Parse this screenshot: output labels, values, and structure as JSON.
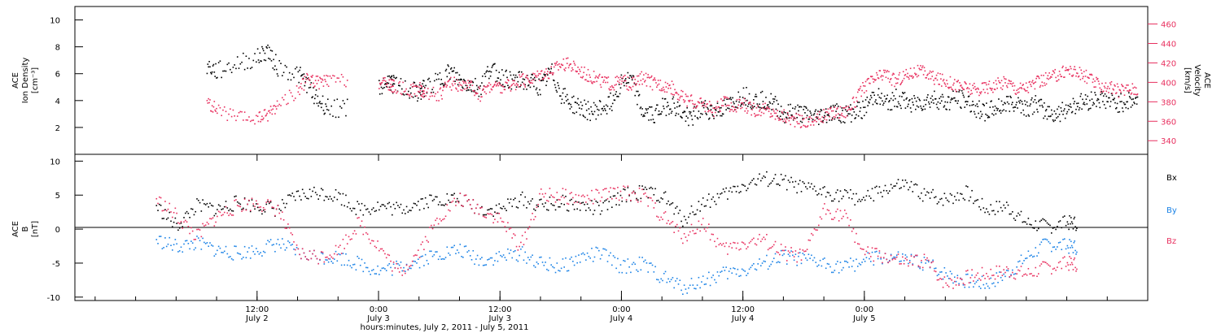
{
  "chart_data": [
    {
      "type": "scatter",
      "panel": "top",
      "ylabel_left": [
        "ACE",
        "Ion Density",
        "[cm⁻³]"
      ],
      "ylabel_right": [
        "ACE",
        "Velocity",
        "[km/s]"
      ],
      "left_axis": {
        "ylim": [
          0,
          11
        ],
        "ticks": [
          2,
          4,
          6,
          8,
          10
        ]
      },
      "right_axis": {
        "ylim": [
          326,
          478
        ],
        "ticks": [
          340,
          360,
          380,
          400,
          420,
          440,
          460
        ]
      },
      "series": [
        {
          "name": "density",
          "color": "#000000",
          "axis": "left",
          "x": [
            7,
            8,
            10,
            12,
            13,
            14,
            16,
            17,
            18,
            19,
            21,
            22,
            24,
            25,
            25.5,
            27,
            28,
            28.5,
            30,
            31,
            32,
            33,
            34,
            35,
            36,
            37,
            38,
            39,
            40,
            41,
            42,
            43,
            44,
            45,
            46,
            47,
            48,
            49,
            50,
            51,
            52,
            53,
            54,
            55,
            56,
            57,
            58,
            59,
            60,
            61,
            62,
            63,
            64,
            65,
            66,
            67,
            68,
            69,
            70,
            71,
            72,
            73,
            74,
            75,
            76,
            77,
            78,
            79,
            80,
            81,
            82,
            83,
            84,
            85,
            86,
            87,
            88,
            89,
            90,
            91,
            92,
            93,
            94,
            95,
            96,
            97,
            98
          ],
          "values": [
            6.6,
            6.2,
            6.8,
            7.2,
            7.8,
            6.5,
            6.0,
            5.2,
            4.0,
            3.5,
            null,
            null,
            5.0,
            5.5,
            5.2,
            4.8,
            4.6,
            5.0,
            5.6,
            6.2,
            5.5,
            5.2,
            5.0,
            6.5,
            5.8,
            5.6,
            5.5,
            5.4,
            5.0,
            6.2,
            4.5,
            3.8,
            3.5,
            3.2,
            3.5,
            4.0,
            5.6,
            5.5,
            3.2,
            3.0,
            3.5,
            3.8,
            3.0,
            2.8,
            3.5,
            3.2,
            3.5,
            3.8,
            4.5,
            4.0,
            4.2,
            3.8,
            3.0,
            3.2,
            3.0,
            2.8,
            3.0,
            3.2,
            3.0,
            3.2,
            3.5,
            4.5,
            3.8,
            4.2,
            4.0,
            3.8,
            4.0,
            4.2,
            3.8,
            4.2,
            4.0,
            3.5,
            3.2,
            3.5,
            3.8,
            4.0,
            3.5,
            3.8,
            3.2,
            3.0,
            3.5,
            3.8,
            4.0,
            4.2,
            4.0,
            3.8,
            4.0
          ]
        },
        {
          "name": "velocity",
          "color": "#e8305f",
          "axis": "right",
          "x": [
            7,
            8,
            10,
            12,
            13,
            14,
            16,
            17,
            18,
            19,
            21,
            22,
            24,
            25,
            25.5,
            27,
            28,
            28.5,
            30,
            31,
            32,
            33,
            34,
            35,
            36,
            37,
            38,
            39,
            40,
            41,
            42,
            43,
            44,
            45,
            46,
            47,
            48,
            49,
            50,
            51,
            52,
            53,
            54,
            55,
            56,
            57,
            58,
            59,
            60,
            61,
            62,
            63,
            64,
            65,
            66,
            67,
            68,
            69,
            70,
            71,
            72,
            73,
            74,
            75,
            76,
            77,
            78,
            79,
            80,
            81,
            82,
            83,
            84,
            85,
            86,
            87,
            88,
            89,
            90,
            91,
            92,
            93,
            94,
            95,
            96,
            97,
            98
          ],
          "values": [
            380,
            372,
            364,
            363,
            368,
            378,
            392,
            405,
            400,
            402,
            null,
            null,
            400,
            398,
            396,
            392,
            394,
            390,
            388,
            400,
            398,
            396,
            388,
            398,
            395,
            398,
            402,
            404,
            410,
            412,
            420,
            418,
            412,
            406,
            402,
            398,
            402,
            398,
            405,
            400,
            398,
            395,
            385,
            380,
            378,
            372,
            380,
            375,
            378,
            372,
            374,
            368,
            366,
            362,
            360,
            362,
            366,
            370,
            370,
            380,
            398,
            404,
            410,
            402,
            408,
            412,
            410,
            404,
            402,
            398,
            395,
            392,
            396,
            398,
            402,
            394,
            396,
            400,
            404,
            408,
            414,
            410,
            406,
            398,
            396,
            392,
            394
          ]
        }
      ]
    },
    {
      "type": "scatter",
      "panel": "bottom",
      "ylabel_left": [
        "ACE",
        "B",
        "[nT]"
      ],
      "ylim": [
        -10.5,
        11
      ],
      "ticks": [
        -10,
        -5,
        0,
        5,
        10
      ],
      "zero_line": true,
      "legend": [
        "Bx",
        "By",
        "Bz"
      ],
      "series": [
        {
          "name": "Bx",
          "color": "#000000",
          "x": [
            2,
            4,
            6,
            8,
            10,
            12,
            14,
            16,
            18,
            20,
            22,
            24,
            26,
            28,
            30,
            32,
            34,
            36,
            38,
            40,
            42,
            44,
            46,
            48,
            50,
            52,
            54,
            56,
            58,
            60,
            62,
            64,
            66,
            68,
            70,
            72,
            74,
            76,
            78,
            80,
            82,
            84,
            86,
            88,
            90,
            92
          ],
          "values": [
            3.5,
            0.5,
            3.5,
            3.0,
            4.0,
            3.5,
            3.0,
            5.0,
            5.5,
            5.0,
            3.0,
            3.5,
            3.0,
            4.0,
            4.5,
            4.5,
            3.0,
            3.0,
            4.5,
            3.5,
            4.0,
            3.5,
            3.0,
            5.0,
            5.5,
            5.0,
            1.5,
            4.0,
            5.0,
            6.5,
            7.5,
            7.0,
            6.0,
            5.5,
            5.0,
            4.5,
            6.0,
            6.5,
            5.0,
            4.5,
            5.5,
            3.0,
            3.5,
            1.0,
            0.5,
            1.0
          ]
        },
        {
          "name": "By",
          "color": "#1a82e6",
          "x": [
            2,
            4,
            6,
            8,
            10,
            12,
            14,
            16,
            18,
            20,
            22,
            24,
            26,
            28,
            30,
            32,
            34,
            36,
            38,
            40,
            42,
            44,
            46,
            48,
            50,
            52,
            54,
            56,
            58,
            60,
            62,
            64,
            66,
            68,
            70,
            72,
            74,
            76,
            78,
            80,
            82,
            84,
            86,
            88,
            90,
            92
          ],
          "values": [
            -1.5,
            -2.5,
            -2.0,
            -3.0,
            -3.5,
            -3.0,
            -2.0,
            -3.5,
            -4.0,
            -4.0,
            -5.0,
            -6.0,
            -5.5,
            -4.5,
            -3.5,
            -3.0,
            -4.5,
            -4.0,
            -3.5,
            -5.0,
            -5.5,
            -4.0,
            -3.5,
            -5.5,
            -5.0,
            -7.0,
            -8.5,
            -7.5,
            -6.5,
            -6.0,
            -5.0,
            -4.0,
            -4.5,
            -5.0,
            -5.5,
            -4.5,
            -4.0,
            -4.5,
            -5.0,
            -6.5,
            -7.5,
            -8.0,
            -6.5,
            -4.0,
            -2.0,
            -2.5
          ]
        },
        {
          "name": "Bz",
          "color": "#e8305f",
          "x": [
            2,
            4,
            6,
            8,
            10,
            12,
            14,
            16,
            18,
            20,
            22,
            24,
            26,
            28,
            30,
            32,
            34,
            36,
            38,
            40,
            42,
            44,
            46,
            48,
            50,
            52,
            54,
            56,
            58,
            60,
            62,
            64,
            66,
            68,
            70,
            72,
            74,
            76,
            78,
            80,
            82,
            84,
            86,
            88,
            90,
            92
          ],
          "values": [
            4.5,
            2.0,
            -1.0,
            2.0,
            3.5,
            4.0,
            3.0,
            -3.5,
            -4.0,
            -3.0,
            1.0,
            -2.5,
            -6.5,
            -3.0,
            2.0,
            4.5,
            3.0,
            1.5,
            -2.5,
            5.0,
            5.0,
            4.5,
            5.0,
            5.5,
            5.0,
            2.0,
            -1.0,
            1.0,
            -3.0,
            -2.0,
            -1.5,
            -3.5,
            -4.0,
            3.0,
            2.0,
            -3.5,
            -4.0,
            -5.0,
            -4.5,
            -8.0,
            -7.0,
            -6.5,
            -6.0,
            -6.5,
            -5.5,
            -5.0
          ]
        }
      ]
    }
  ],
  "x_axis": {
    "xlim": [
      -6,
      100
    ],
    "ticks": [
      {
        "x": 12,
        "line1": "12:00",
        "line2": "July 2"
      },
      {
        "x": 24,
        "line1": "0:00",
        "line2": "July 3"
      },
      {
        "x": 36,
        "line1": "12:00",
        "line2": "July 3"
      },
      {
        "x": 48,
        "line1": "0:00",
        "line2": "July 4"
      },
      {
        "x": 60,
        "line1": "12:00",
        "line2": "July 4"
      },
      {
        "x": 72,
        "line1": "0:00",
        "line2": "July 5"
      }
    ],
    "label": "hours:minutes, July  2, 2011 - July  5, 2011"
  },
  "text": {
    "top_left": [
      "ACE",
      "Ion Density",
      "[cm⁻³]"
    ],
    "top_right": [
      "ACE",
      "Velocity",
      "[km/s]"
    ],
    "bottom_left": [
      "ACE",
      "B",
      "[nT]"
    ],
    "legend": {
      "bx": "Bx",
      "by": "By",
      "bz": "Bz"
    }
  }
}
